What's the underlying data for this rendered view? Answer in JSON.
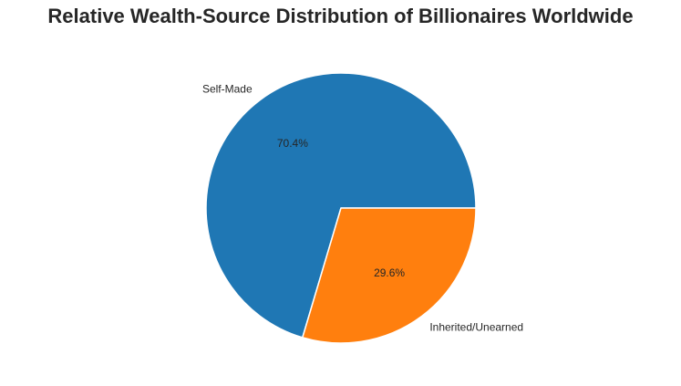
{
  "chart_data": {
    "type": "pie",
    "title": "Relative Wealth-Source Distribution of Billionaires Worldwide",
    "categories": [
      "Self-Made",
      "Inherited/Unearned"
    ],
    "values": [
      70.4,
      29.6
    ],
    "value_labels": [
      "70.4%",
      "29.6%"
    ],
    "colors": [
      "#1f77b4",
      "#ff7f0e"
    ]
  }
}
